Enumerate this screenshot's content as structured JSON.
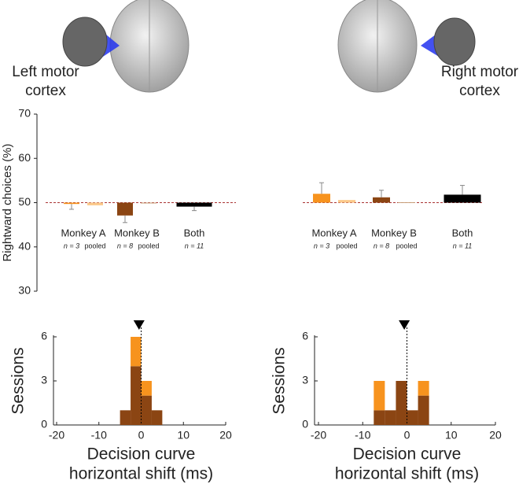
{
  "brain_labels": [
    [
      "Left motor",
      "cortex"
    ],
    [
      "Right motor",
      "cortex"
    ]
  ],
  "chart_data": [
    {
      "type": "bar",
      "ylabel": "Rightward choices (%)",
      "ylim": [
        30,
        70
      ],
      "yticks": [
        30,
        40,
        50,
        60,
        70
      ],
      "baseline": 50,
      "groups": [
        {
          "label": "Monkey A",
          "bars": [
            {
              "sublabel": "n = 3",
              "value": 49.7,
              "error": 1.2,
              "color": "#f7931e"
            },
            {
              "sublabel": "pooled",
              "value": 49.4,
              "color": "#fbc98a"
            }
          ]
        },
        {
          "label": "Monkey B",
          "bars": [
            {
              "sublabel": "n = 8",
              "value": 47.1,
              "error": 1.6,
              "color": "#8b4513"
            },
            {
              "sublabel": "pooled",
              "value": 50.0,
              "color": "#c8a07a"
            }
          ]
        },
        {
          "label": "Both",
          "bars": [
            {
              "sublabel": "n = 11",
              "value": 49.1,
              "error": 0.9,
              "color": "#000000"
            }
          ]
        }
      ]
    },
    {
      "type": "bar",
      "ylim": [
        30,
        70
      ],
      "baseline": 50,
      "groups": [
        {
          "label": "Monkey A",
          "bars": [
            {
              "sublabel": "n = 3",
              "value": 52.0,
              "error": 2.5,
              "color": "#f7931e"
            },
            {
              "sublabel": "pooled",
              "value": 50.6,
              "color": "#fbc98a"
            }
          ]
        },
        {
          "label": "Monkey B",
          "bars": [
            {
              "sublabel": "n = 8",
              "value": 51.2,
              "error": 1.6,
              "color": "#8b4513"
            },
            {
              "sublabel": "pooled",
              "value": 50.1,
              "color": "#c8a07a"
            }
          ]
        },
        {
          "label": "Both",
          "bars": [
            {
              "sublabel": "n = 11",
              "value": 51.8,
              "error": 2.1,
              "color": "#000000"
            }
          ]
        }
      ]
    },
    {
      "type": "histogram",
      "ylabel": "Sessions",
      "xlabel": [
        "Decision curve",
        "horizontal shift (ms)"
      ],
      "xlim": [
        -20,
        20
      ],
      "xticks": [
        -20,
        -10,
        0,
        10,
        20
      ],
      "ylim": [
        0,
        6
      ],
      "yticks": [
        0,
        3,
        6
      ],
      "bins": [
        -5,
        -2.5,
        0,
        2.5,
        5
      ],
      "vline": 0,
      "marker_x": -0.5,
      "series": [
        {
          "color": "#8b4513",
          "values": [
            1,
            4,
            2,
            1
          ]
        },
        {
          "color": "#f7931e",
          "values": [
            0,
            2,
            1,
            0
          ]
        }
      ]
    },
    {
      "type": "histogram",
      "ylabel": "Sessions",
      "xlabel": [
        "Decision curve",
        "horizontal shift (ms)"
      ],
      "xlim": [
        -20,
        20
      ],
      "xticks": [
        -20,
        -10,
        0,
        10,
        20
      ],
      "ylim": [
        0,
        6
      ],
      "yticks": [
        0,
        3,
        6
      ],
      "bins": [
        -7.5,
        -5,
        -2.5,
        0,
        2.5,
        5
      ],
      "vline": 0,
      "marker_x": -0.6,
      "series": [
        {
          "color": "#8b4513",
          "values": [
            1,
            1,
            3,
            1,
            2
          ]
        },
        {
          "color": "#f7931e",
          "values": [
            2,
            0,
            0,
            0,
            1
          ]
        }
      ]
    }
  ]
}
